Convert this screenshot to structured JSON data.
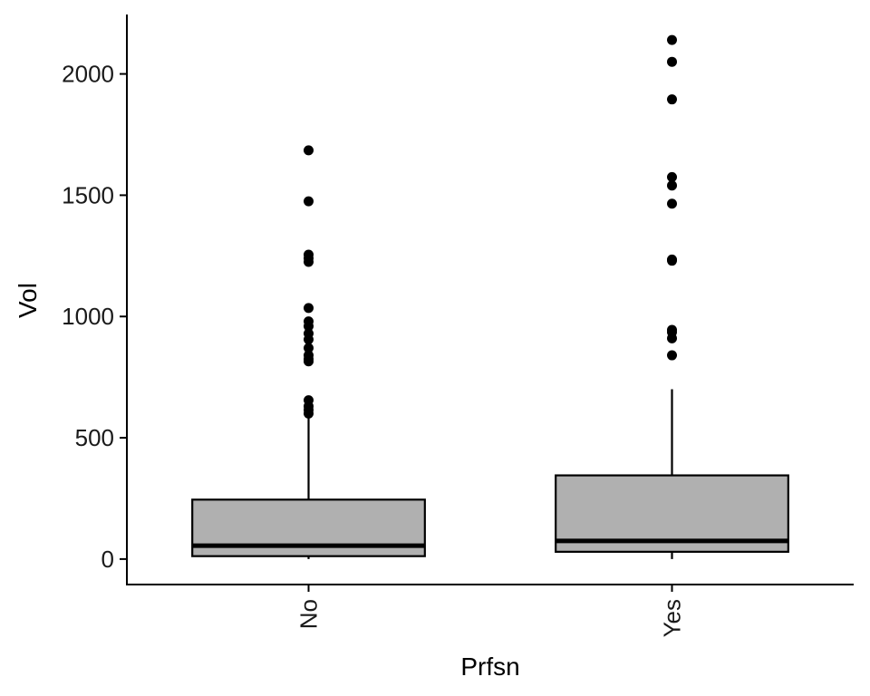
{
  "chart_data": {
    "type": "boxplot",
    "title": "",
    "xlabel": "Prfsn",
    "ylabel": "Vol",
    "categories": [
      "No",
      "Yes"
    ],
    "ylim": [
      -105,
      2245
    ],
    "yticks": [
      0,
      500,
      1000,
      1500,
      2000
    ],
    "grid": false,
    "legend": "none",
    "box_fill": "#b0b0b0",
    "line_color": "#000000",
    "boxes": [
      {
        "category": "No",
        "whisker_low": 0,
        "q1": 12,
        "median": 55,
        "q3": 245,
        "whisker_high": 585,
        "outliers": [
          1685,
          1475,
          1255,
          1240,
          1225,
          1035,
          980,
          960,
          930,
          905,
          870,
          840,
          825,
          815,
          655,
          630,
          615,
          600
        ]
      },
      {
        "category": "Yes",
        "whisker_low": 0,
        "q1": 30,
        "median": 75,
        "q3": 345,
        "whisker_high": 700,
        "outliers": [
          2140,
          2050,
          1895,
          1575,
          1540,
          1465,
          1235,
          1230,
          945,
          935,
          910,
          840
        ]
      }
    ]
  }
}
